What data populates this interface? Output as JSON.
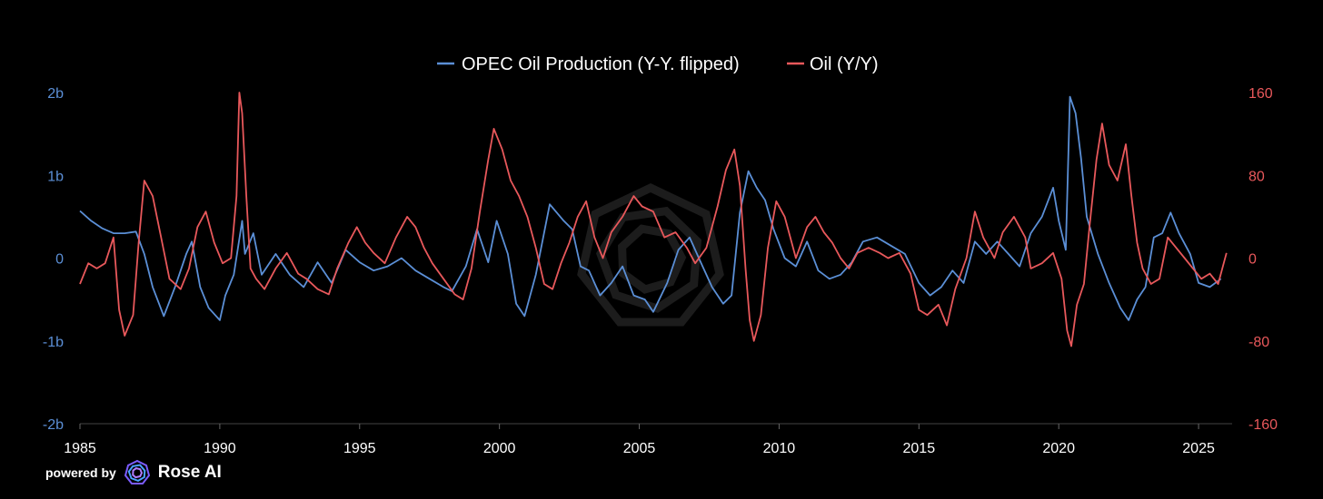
{
  "footer": {
    "powered_label": "powered by",
    "brand_name": "Rose AI",
    "logo_icon": "rose-ai-logo-icon"
  },
  "watermark_icon": "rose-ai-watermark-icon",
  "chart_data": {
    "type": "line",
    "title": "",
    "legend": [
      "OPEC Oil Production (Y-Y. flipped)",
      "Oil (Y/Y)"
    ],
    "legend_position": "top-center",
    "x": {
      "range": [
        1985,
        2026.2
      ],
      "ticks": [
        1985,
        1990,
        1995,
        2000,
        2005,
        2010,
        2015,
        2020,
        2025
      ],
      "tick_labels": [
        "1985",
        "1990",
        "1995",
        "2000",
        "2005",
        "2010",
        "2015",
        "2020",
        "2025"
      ]
    },
    "y_left": {
      "range": [
        -2,
        2
      ],
      "ticks": [
        2,
        1,
        0,
        -1,
        -2
      ],
      "tick_labels": [
        "2b",
        "1b",
        "0",
        "-1b",
        "-2b"
      ],
      "color": "#5b8fd6"
    },
    "y_right": {
      "range": [
        -160,
        160
      ],
      "ticks": [
        160,
        80,
        0,
        -80,
        -160
      ],
      "tick_labels": [
        "160",
        "80",
        "0",
        "-80",
        "-160"
      ],
      "color": "#e8585b"
    },
    "grid": false,
    "series": [
      {
        "name": "OPEC Oil Production (Y-Y. flipped)",
        "axis": "left",
        "color": "#5b8fd6",
        "points": [
          [
            1985.0,
            0.57
          ],
          [
            1985.4,
            0.45
          ],
          [
            1985.8,
            0.36
          ],
          [
            1986.2,
            0.3
          ],
          [
            1986.6,
            0.3
          ],
          [
            1987.0,
            0.32
          ],
          [
            1987.3,
            0.05
          ],
          [
            1987.6,
            -0.35
          ],
          [
            1988.0,
            -0.7
          ],
          [
            1988.4,
            -0.35
          ],
          [
            1988.8,
            0.05
          ],
          [
            1989.0,
            0.2
          ],
          [
            1989.3,
            -0.35
          ],
          [
            1989.6,
            -0.6
          ],
          [
            1990.0,
            -0.75
          ],
          [
            1990.2,
            -0.45
          ],
          [
            1990.5,
            -0.2
          ],
          [
            1990.8,
            0.45
          ],
          [
            1990.9,
            0.05
          ],
          [
            1991.2,
            0.3
          ],
          [
            1991.5,
            -0.2
          ],
          [
            1992.0,
            0.05
          ],
          [
            1992.5,
            -0.2
          ],
          [
            1993.0,
            -0.35
          ],
          [
            1993.5,
            -0.05
          ],
          [
            1994.0,
            -0.3
          ],
          [
            1994.5,
            0.1
          ],
          [
            1995.0,
            -0.05
          ],
          [
            1995.5,
            -0.15
          ],
          [
            1996.0,
            -0.1
          ],
          [
            1996.5,
            0.0
          ],
          [
            1997.0,
            -0.15
          ],
          [
            1997.5,
            -0.25
          ],
          [
            1998.0,
            -0.35
          ],
          [
            1998.3,
            -0.4
          ],
          [
            1998.8,
            -0.1
          ],
          [
            1999.2,
            0.35
          ],
          [
            1999.6,
            -0.05
          ],
          [
            1999.9,
            0.45
          ],
          [
            2000.3,
            0.05
          ],
          [
            2000.6,
            -0.55
          ],
          [
            2000.9,
            -0.7
          ],
          [
            2001.3,
            -0.2
          ],
          [
            2001.8,
            0.65
          ],
          [
            2002.3,
            0.45
          ],
          [
            2002.6,
            0.35
          ],
          [
            2002.9,
            -0.1
          ],
          [
            2003.2,
            -0.15
          ],
          [
            2003.6,
            -0.45
          ],
          [
            2004.0,
            -0.3
          ],
          [
            2004.4,
            -0.1
          ],
          [
            2004.8,
            -0.45
          ],
          [
            2005.2,
            -0.5
          ],
          [
            2005.5,
            -0.65
          ],
          [
            2006.0,
            -0.3
          ],
          [
            2006.4,
            0.1
          ],
          [
            2006.8,
            0.25
          ],
          [
            2007.2,
            -0.05
          ],
          [
            2007.6,
            -0.35
          ],
          [
            2008.0,
            -0.55
          ],
          [
            2008.3,
            -0.45
          ],
          [
            2008.6,
            0.55
          ],
          [
            2008.9,
            1.05
          ],
          [
            2009.2,
            0.85
          ],
          [
            2009.5,
            0.7
          ],
          [
            2009.8,
            0.35
          ],
          [
            2010.2,
            0.0
          ],
          [
            2010.6,
            -0.1
          ],
          [
            2011.0,
            0.2
          ],
          [
            2011.4,
            -0.15
          ],
          [
            2011.8,
            -0.25
          ],
          [
            2012.2,
            -0.2
          ],
          [
            2012.6,
            -0.05
          ],
          [
            2013.0,
            0.2
          ],
          [
            2013.5,
            0.25
          ],
          [
            2014.0,
            0.15
          ],
          [
            2014.5,
            0.05
          ],
          [
            2015.0,
            -0.3
          ],
          [
            2015.4,
            -0.45
          ],
          [
            2015.8,
            -0.35
          ],
          [
            2016.2,
            -0.15
          ],
          [
            2016.6,
            -0.3
          ],
          [
            2017.0,
            0.2
          ],
          [
            2017.4,
            0.05
          ],
          [
            2017.8,
            0.2
          ],
          [
            2018.2,
            0.05
          ],
          [
            2018.6,
            -0.1
          ],
          [
            2019.0,
            0.3
          ],
          [
            2019.4,
            0.5
          ],
          [
            2019.8,
            0.85
          ],
          [
            2020.0,
            0.45
          ],
          [
            2020.25,
            0.1
          ],
          [
            2020.4,
            1.95
          ],
          [
            2020.6,
            1.75
          ],
          [
            2020.8,
            1.2
          ],
          [
            2021.0,
            0.5
          ],
          [
            2021.4,
            0.05
          ],
          [
            2021.8,
            -0.3
          ],
          [
            2022.2,
            -0.6
          ],
          [
            2022.5,
            -0.75
          ],
          [
            2022.8,
            -0.5
          ],
          [
            2023.1,
            -0.35
          ],
          [
            2023.4,
            0.25
          ],
          [
            2023.7,
            0.3
          ],
          [
            2024.0,
            0.55
          ],
          [
            2024.3,
            0.3
          ],
          [
            2024.7,
            0.05
          ],
          [
            2025.0,
            -0.3
          ],
          [
            2025.4,
            -0.35
          ],
          [
            2025.8,
            -0.25
          ]
        ]
      },
      {
        "name": "Oil (Y/Y)",
        "axis": "right",
        "color": "#e8585b",
        "points": [
          [
            1985.0,
            -25
          ],
          [
            1985.3,
            -5
          ],
          [
            1985.6,
            -10
          ],
          [
            1985.9,
            -5
          ],
          [
            1986.2,
            20
          ],
          [
            1986.4,
            -50
          ],
          [
            1986.6,
            -75
          ],
          [
            1986.9,
            -55
          ],
          [
            1987.1,
            15
          ],
          [
            1987.3,
            75
          ],
          [
            1987.6,
            60
          ],
          [
            1987.9,
            20
          ],
          [
            1988.2,
            -20
          ],
          [
            1988.6,
            -30
          ],
          [
            1988.9,
            -10
          ],
          [
            1989.2,
            30
          ],
          [
            1989.5,
            45
          ],
          [
            1989.8,
            15
          ],
          [
            1990.1,
            -5
          ],
          [
            1990.4,
            0
          ],
          [
            1990.6,
            60
          ],
          [
            1990.7,
            160
          ],
          [
            1990.8,
            140
          ],
          [
            1990.95,
            60
          ],
          [
            1991.1,
            -10
          ],
          [
            1991.3,
            -20
          ],
          [
            1991.6,
            -30
          ],
          [
            1992.0,
            -10
          ],
          [
            1992.4,
            5
          ],
          [
            1992.8,
            -15
          ],
          [
            1993.1,
            -20
          ],
          [
            1993.5,
            -30
          ],
          [
            1993.9,
            -35
          ],
          [
            1994.2,
            -10
          ],
          [
            1994.6,
            15
          ],
          [
            1994.9,
            30
          ],
          [
            1995.2,
            15
          ],
          [
            1995.5,
            5
          ],
          [
            1995.9,
            -5
          ],
          [
            1996.3,
            20
          ],
          [
            1996.7,
            40
          ],
          [
            1997.0,
            30
          ],
          [
            1997.3,
            10
          ],
          [
            1997.6,
            -5
          ],
          [
            1998.0,
            -20
          ],
          [
            1998.4,
            -35
          ],
          [
            1998.7,
            -40
          ],
          [
            1999.0,
            -10
          ],
          [
            1999.3,
            45
          ],
          [
            1999.6,
            95
          ],
          [
            1999.8,
            125
          ],
          [
            2000.1,
            105
          ],
          [
            2000.4,
            75
          ],
          [
            2000.7,
            60
          ],
          [
            2001.0,
            40
          ],
          [
            2001.3,
            10
          ],
          [
            2001.6,
            -25
          ],
          [
            2001.9,
            -30
          ],
          [
            2002.2,
            -5
          ],
          [
            2002.5,
            15
          ],
          [
            2002.8,
            40
          ],
          [
            2003.1,
            55
          ],
          [
            2003.4,
            20
          ],
          [
            2003.7,
            0
          ],
          [
            2004.0,
            25
          ],
          [
            2004.4,
            40
          ],
          [
            2004.8,
            60
          ],
          [
            2005.1,
            50
          ],
          [
            2005.5,
            45
          ],
          [
            2005.9,
            20
          ],
          [
            2006.3,
            25
          ],
          [
            2006.7,
            10
          ],
          [
            2007.0,
            -5
          ],
          [
            2007.4,
            10
          ],
          [
            2007.8,
            50
          ],
          [
            2008.1,
            85
          ],
          [
            2008.4,
            105
          ],
          [
            2008.6,
            70
          ],
          [
            2008.8,
            -10
          ],
          [
            2008.95,
            -60
          ],
          [
            2009.1,
            -80
          ],
          [
            2009.35,
            -55
          ],
          [
            2009.6,
            10
          ],
          [
            2009.9,
            55
          ],
          [
            2010.2,
            40
          ],
          [
            2010.6,
            0
          ],
          [
            2011.0,
            30
          ],
          [
            2011.3,
            40
          ],
          [
            2011.6,
            25
          ],
          [
            2011.9,
            15
          ],
          [
            2012.2,
            0
          ],
          [
            2012.5,
            -10
          ],
          [
            2012.8,
            5
          ],
          [
            2013.2,
            10
          ],
          [
            2013.6,
            5
          ],
          [
            2013.9,
            0
          ],
          [
            2014.3,
            5
          ],
          [
            2014.7,
            -15
          ],
          [
            2015.0,
            -50
          ],
          [
            2015.3,
            -55
          ],
          [
            2015.7,
            -45
          ],
          [
            2016.0,
            -65
          ],
          [
            2016.3,
            -30
          ],
          [
            2016.7,
            0
          ],
          [
            2017.0,
            45
          ],
          [
            2017.3,
            20
          ],
          [
            2017.7,
            0
          ],
          [
            2018.0,
            25
          ],
          [
            2018.4,
            40
          ],
          [
            2018.8,
            20
          ],
          [
            2019.0,
            -10
          ],
          [
            2019.4,
            -5
          ],
          [
            2019.8,
            5
          ],
          [
            2020.1,
            -20
          ],
          [
            2020.3,
            -70
          ],
          [
            2020.45,
            -85
          ],
          [
            2020.65,
            -45
          ],
          [
            2020.9,
            -25
          ],
          [
            2021.1,
            30
          ],
          [
            2021.35,
            95
          ],
          [
            2021.55,
            130
          ],
          [
            2021.8,
            90
          ],
          [
            2022.1,
            75
          ],
          [
            2022.4,
            110
          ],
          [
            2022.6,
            60
          ],
          [
            2022.8,
            15
          ],
          [
            2023.0,
            -10
          ],
          [
            2023.3,
            -25
          ],
          [
            2023.6,
            -20
          ],
          [
            2023.9,
            20
          ],
          [
            2024.2,
            10
          ],
          [
            2024.5,
            0
          ],
          [
            2024.8,
            -10
          ],
          [
            2025.1,
            -20
          ],
          [
            2025.4,
            -15
          ],
          [
            2025.7,
            -25
          ],
          [
            2026.0,
            5
          ]
        ]
      }
    ]
  }
}
